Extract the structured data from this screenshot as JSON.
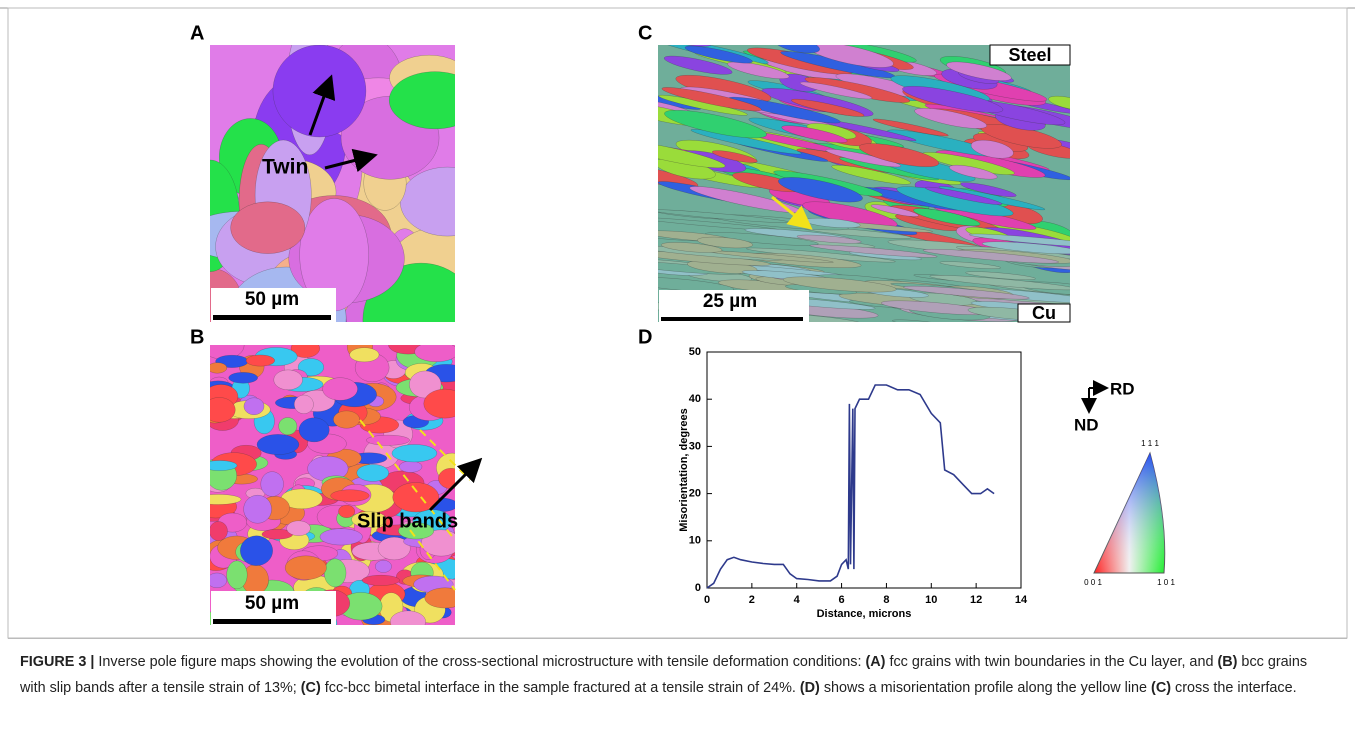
{
  "panels": {
    "a": {
      "label": "A",
      "annotation": "Twin",
      "scale_bar": "50 µm"
    },
    "b": {
      "label": "B",
      "annotation": "Slip bands",
      "scale_bar": "50 µm"
    },
    "c": {
      "label": "C",
      "top_label": "Steel",
      "bottom_label": "Cu",
      "scale_bar": "25 µm"
    },
    "d": {
      "label": "D"
    }
  },
  "chart_data": {
    "type": "line",
    "ylabel": "Misorientation, degrees",
    "xlabel": "Distance, microns",
    "color": "#2e3a8c",
    "x": [
      0,
      0.3,
      0.6,
      0.9,
      1.2,
      1.5,
      2,
      2.5,
      3,
      3.4,
      3.7,
      4,
      4.5,
      5,
      5.5,
      5.8,
      6,
      6.2,
      6.3,
      6.35,
      6.4,
      6.5,
      6.55,
      6.6,
      6.8,
      7.2,
      7.5,
      8,
      8.5,
      9,
      9.5,
      10,
      10.4,
      10.6,
      11,
      11.4,
      11.8,
      12.2,
      12.5,
      12.8
    ],
    "values": [
      0,
      1,
      4,
      6,
      6.5,
      6,
      5.5,
      5.2,
      5,
      5,
      3,
      2,
      1.8,
      1.5,
      1.5,
      2.5,
      5,
      6,
      4,
      39,
      5,
      38,
      4,
      38,
      40,
      40,
      43,
      43,
      42,
      42,
      41,
      37,
      35,
      25,
      24,
      22,
      20,
      20,
      21,
      20
    ],
    "xlim": [
      0,
      14
    ],
    "ylim": [
      0,
      50
    ],
    "xticks": [
      0,
      2,
      4,
      6,
      8,
      10,
      12,
      14
    ],
    "yticks": [
      0,
      10,
      20,
      30,
      40,
      50
    ]
  },
  "legend": {
    "rd": "RD",
    "nd": "ND",
    "top": "1 1 1",
    "left": "0 0 1",
    "right": "1 0 1"
  },
  "caption": [
    "FIGURE 3 |",
    " Inverse pole figure maps showing the evolution of the cross-sectional microstructure with tensile deformation conditions: ",
    "(A)",
    " fcc grains with twin boundaries in the Cu layer, and ",
    "(B)",
    " bcc grains with slip bands after a tensile strain of 13%; ",
    "(C)",
    " fcc-bcc bimetal interface in the sample fractured at a tensile strain of 24%. ",
    "(D)",
    " shows a misorientation profile along the yellow line ",
    "(C)",
    " cross the interface."
  ]
}
